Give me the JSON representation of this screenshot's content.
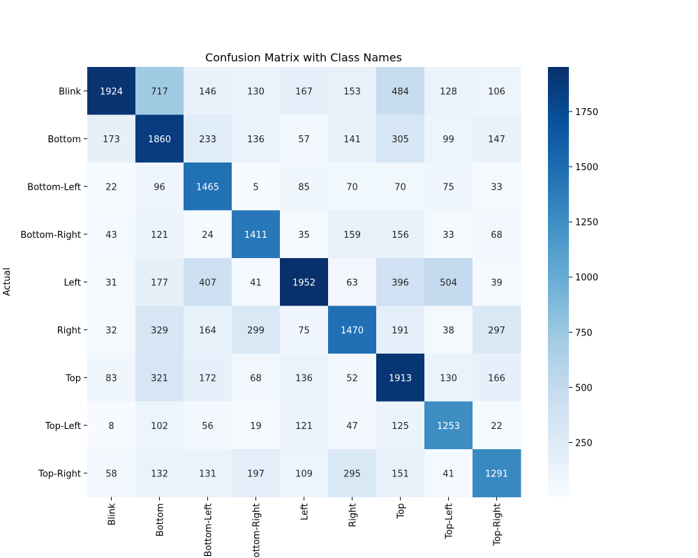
{
  "chart_data": {
    "type": "heatmap",
    "title": "Confusion Matrix with Class Names",
    "xlabel": "",
    "ylabel": "Actual",
    "row_labels": [
      "Blink",
      "Bottom",
      "Bottom-Left",
      "Bottom-Right",
      "Left",
      "Right",
      "Top",
      "Top-Left",
      "Top-Right"
    ],
    "col_labels": [
      "Blink",
      "Bottom",
      "Bottom-Left",
      "Bottom-Right",
      "Left",
      "Right",
      "Top",
      "Top-Left",
      "Top-Right"
    ],
    "values": [
      [
        1924,
        717,
        146,
        130,
        167,
        153,
        484,
        128,
        106
      ],
      [
        173,
        1860,
        233,
        136,
        57,
        141,
        305,
        99,
        147
      ],
      [
        22,
        96,
        1465,
        5,
        85,
        70,
        70,
        75,
        33
      ],
      [
        43,
        121,
        24,
        1411,
        35,
        159,
        156,
        33,
        68
      ],
      [
        31,
        177,
        407,
        41,
        1952,
        63,
        396,
        504,
        39
      ],
      [
        32,
        329,
        164,
        299,
        75,
        1470,
        191,
        38,
        297
      ],
      [
        83,
        321,
        172,
        68,
        136,
        52,
        1913,
        130,
        166
      ],
      [
        8,
        102,
        56,
        19,
        121,
        47,
        125,
        1253,
        22
      ],
      [
        58,
        132,
        131,
        197,
        109,
        295,
        151,
        41,
        1291
      ]
    ],
    "colormap": "Blues",
    "colors": [
      "#f7fbff",
      "#deebf7",
      "#c6dbef",
      "#9ecae1",
      "#6baed6",
      "#4292c6",
      "#2171b5",
      "#08519c",
      "#08306b"
    ],
    "colorbar": {
      "vmin": 5,
      "vmax": 1952,
      "ticks": [
        250,
        500,
        750,
        1000,
        1250,
        1500,
        1750
      ],
      "tick_labels": [
        "250",
        "500",
        "750",
        "1000",
        "1250",
        "1500",
        "1750"
      ]
    },
    "annotations": true
  }
}
